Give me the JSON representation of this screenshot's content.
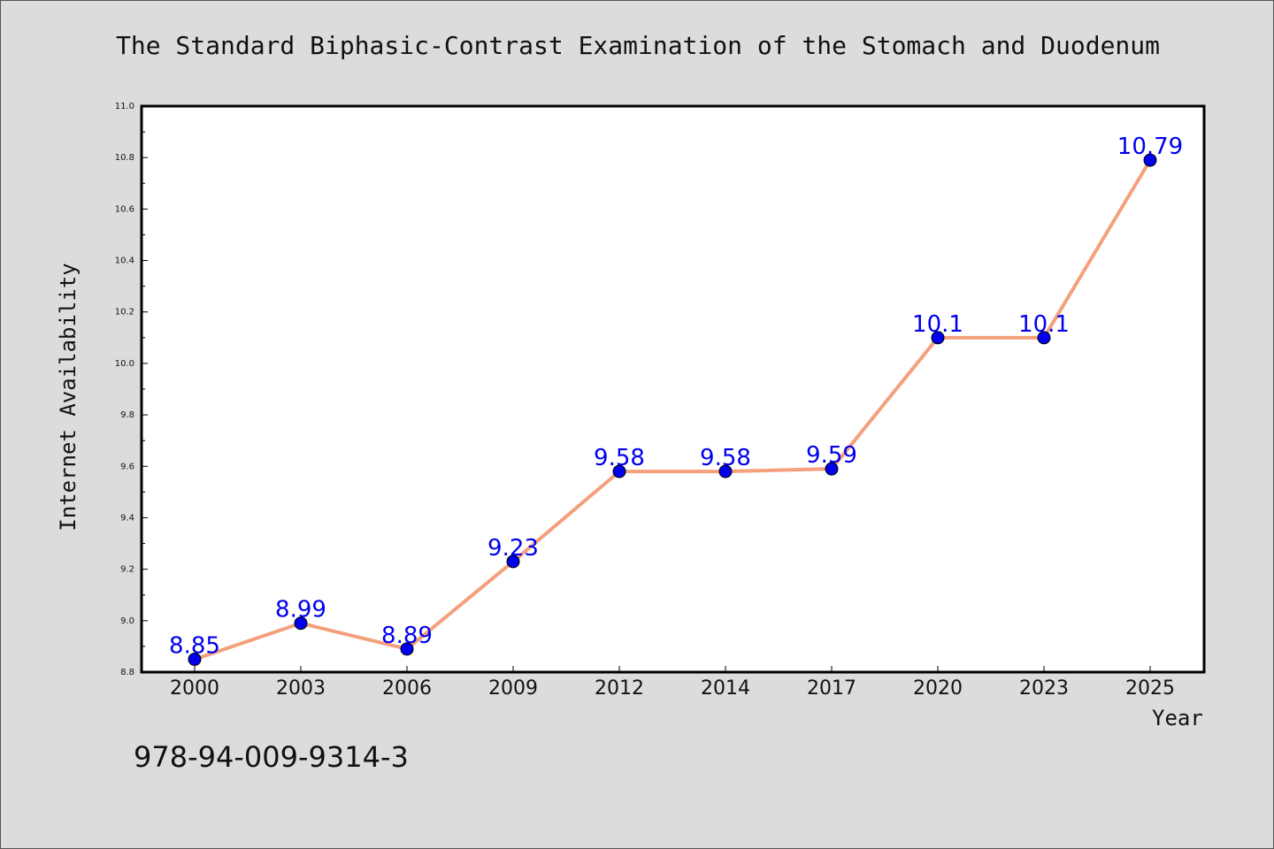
{
  "chart_data": {
    "type": "line",
    "title": "The Standard Biphasic-Contrast Examination of the Stomach and Duodenum",
    "xlabel": "Year",
    "ylabel": "Internet Availability",
    "categories": [
      "2000",
      "2003",
      "2006",
      "2009",
      "2012",
      "2014",
      "2017",
      "2020",
      "2023",
      "2025"
    ],
    "series": [
      {
        "values": [
          8.85,
          8.99,
          8.89,
          9.23,
          9.58,
          9.58,
          9.59,
          10.1,
          10.1,
          10.79
        ],
        "labels": [
          "8.85",
          "8.99",
          "8.89",
          "9.23",
          "9.58",
          "9.58",
          "9.59",
          "10.1",
          "10.1",
          "10.79"
        ],
        "line_color": "#f4a07c",
        "marker_color": "#0000ee"
      }
    ],
    "ylim": [
      8.8,
      11.0
    ],
    "yticks": [
      "8.8",
      "9.0",
      "9.2",
      "9.4",
      "9.6",
      "9.8",
      "10.0",
      "10.2",
      "10.4",
      "10.6",
      "10.8",
      "11.0"
    ],
    "legend": "none",
    "grid": false
  },
  "footer": {
    "isbn": "978-94-009-9314-3"
  }
}
